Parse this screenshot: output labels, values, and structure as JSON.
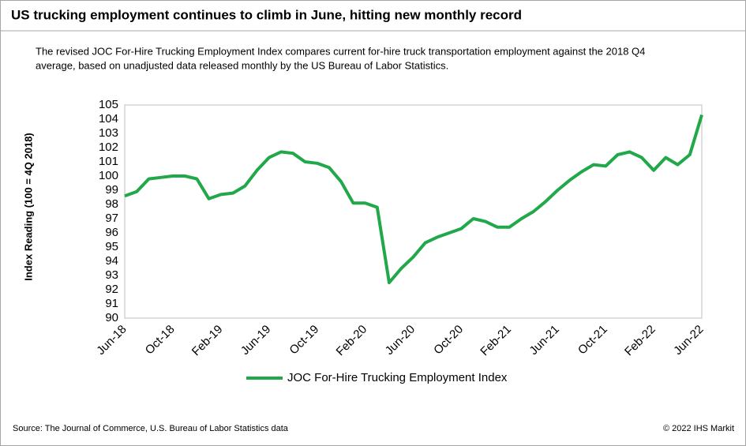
{
  "chart_data": {
    "type": "line",
    "title": "US trucking employment continues to climb in June, hitting new monthly record",
    "subtitle": [
      "The revised JOC For-Hire Trucking Employment Index compares current for-hire truck transportation employment against the 2018 Q4",
      "average, based on unadjusted data released monthly by the US Bureau of Labor Statistics."
    ],
    "ylabel": "Index Reading (100 = 4Q 2018)",
    "categories": [
      "Jun-18",
      null,
      null,
      null,
      "Oct-18",
      null,
      null,
      null,
      "Feb-19",
      null,
      null,
      null,
      "Jun-19",
      null,
      null,
      null,
      "Oct-19",
      null,
      null,
      null,
      "Feb-20",
      null,
      null,
      null,
      "Jun-20",
      null,
      null,
      null,
      "Oct-20",
      null,
      null,
      null,
      "Feb-21",
      null,
      null,
      null,
      "Jun-21",
      null,
      null,
      null,
      "Oct-21",
      null,
      null,
      null,
      "Feb-22",
      null,
      null,
      null,
      "Jun-22"
    ],
    "series": [
      {
        "name": "JOC For-Hire Trucking Employment Index",
        "color": "#21a84a",
        "values": [
          98.6,
          98.9,
          99.8,
          99.9,
          100.0,
          100.0,
          99.8,
          98.4,
          98.7,
          98.8,
          99.3,
          100.4,
          101.3,
          101.7,
          101.6,
          101.0,
          100.9,
          100.6,
          99.6,
          98.1,
          98.1,
          97.8,
          92.5,
          93.5,
          94.3,
          95.3,
          95.7,
          96.0,
          96.3,
          97.0,
          96.8,
          96.4,
          96.4,
          97.0,
          97.5,
          98.2,
          99.0,
          99.7,
          100.3,
          100.8,
          100.7,
          101.5,
          101.7,
          101.3,
          100.4,
          101.3,
          100.8,
          101.5,
          104.3
        ]
      }
    ],
    "ylim": [
      90,
      105
    ],
    "yticks": [
      90,
      91,
      92,
      93,
      94,
      95,
      96,
      97,
      98,
      99,
      100,
      101,
      102,
      103,
      104,
      105
    ],
    "grid": false,
    "legend": "bottom",
    "source": "Source: The Journal of Commerce, U.S. Bureau of Labor Statistics data",
    "copyright": "© 2022 IHS Markit"
  }
}
